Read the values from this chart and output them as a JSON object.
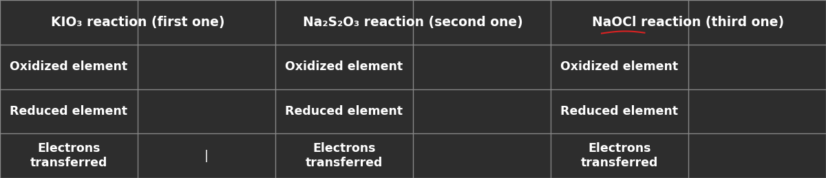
{
  "bg_color": "#2d2d2d",
  "line_color": "#888888",
  "text_color": "#ffffff",
  "figsize": [
    12.0,
    2.59
  ],
  "dpi": 100,
  "col_headers": [
    "KIO₃ reaction (first one)",
    "Na₂S₂O₃ reaction (second one)",
    "NaOCl reaction (third one)"
  ],
  "row_labels": [
    "Oxidized element",
    "Reduced element",
    "Electrons\ntransferred"
  ],
  "naocl_underline_color": "#dd2222",
  "header_font_size": 13.5,
  "cell_font_size": 12.5,
  "cursor_char": "|"
}
